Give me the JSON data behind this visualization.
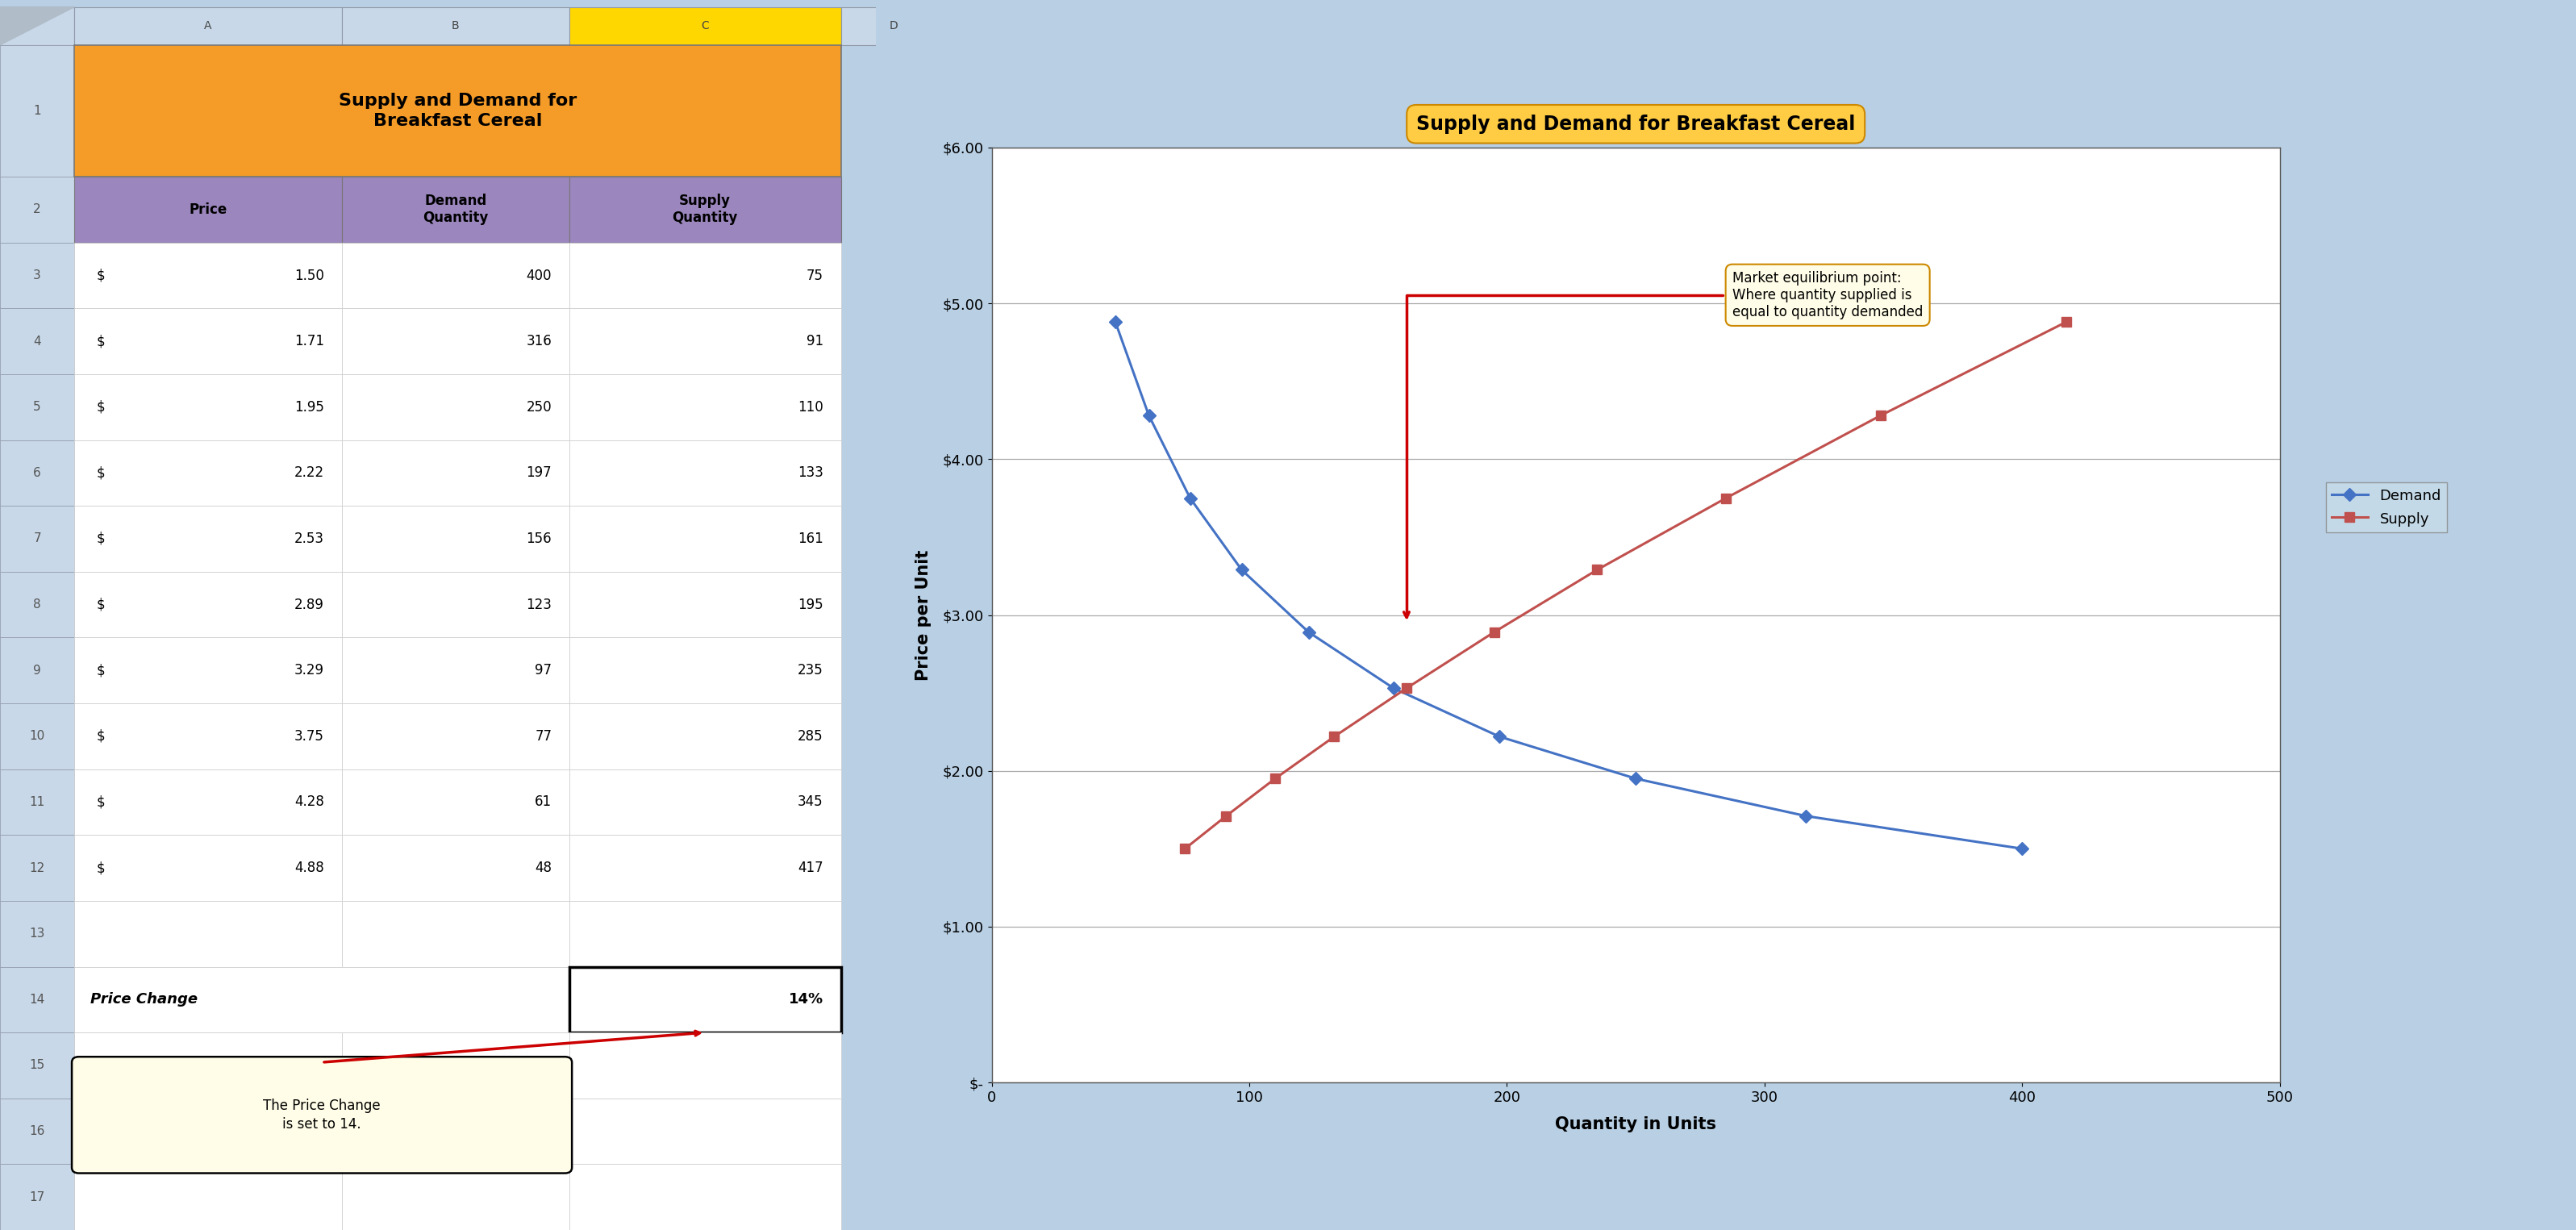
{
  "title_cell": "Supply and Demand for\nBreakfast Cereal",
  "col_headers": [
    "Price",
    "Demand\nQuantity",
    "Supply\nQuantity"
  ],
  "prices": [
    1.5,
    1.71,
    1.95,
    2.22,
    2.53,
    2.89,
    3.29,
    3.75,
    4.28,
    4.88
  ],
  "demand_qty": [
    400,
    316,
    250,
    197,
    156,
    123,
    97,
    77,
    61,
    48
  ],
  "supply_qty": [
    75,
    91,
    110,
    133,
    161,
    195,
    235,
    285,
    345,
    417
  ],
  "chart_title": "Supply and Demand for Breakfast Cereal",
  "xlabel": "Quantity in Units",
  "ylabel": "Price per Unit",
  "demand_color": "#4472C4",
  "supply_color": "#C0504D",
  "chart_outer_bg": "#92C4D4",
  "chart_plot_bg": "#FFFFFF",
  "cell_bg_orange": "#F59B27",
  "cell_bg_purple": "#9B86BD",
  "cell_bg_yellow": "#FFD700",
  "excel_bg": "#B8CFE4",
  "header_bg": "#C8D8E8",
  "price_change_label": "Price Change",
  "price_change_value": "14%",
  "annotation1_text": "Market equilibrium point:\nWhere quantity supplied is\nequal to quantity demanded",
  "annotation2_text": "The Price Change\nis set to 14.",
  "y_ticks": [
    "$-",
    "$1.00",
    "$2.00",
    "$3.00",
    "$4.00",
    "$5.00",
    "$6.00"
  ],
  "y_vals": [
    0,
    1,
    2,
    3,
    4,
    5,
    6
  ],
  "x_ticks": [
    0,
    100,
    200,
    300,
    400,
    500
  ],
  "xlim": [
    0,
    500
  ],
  "ylim": [
    0,
    6.0
  ]
}
